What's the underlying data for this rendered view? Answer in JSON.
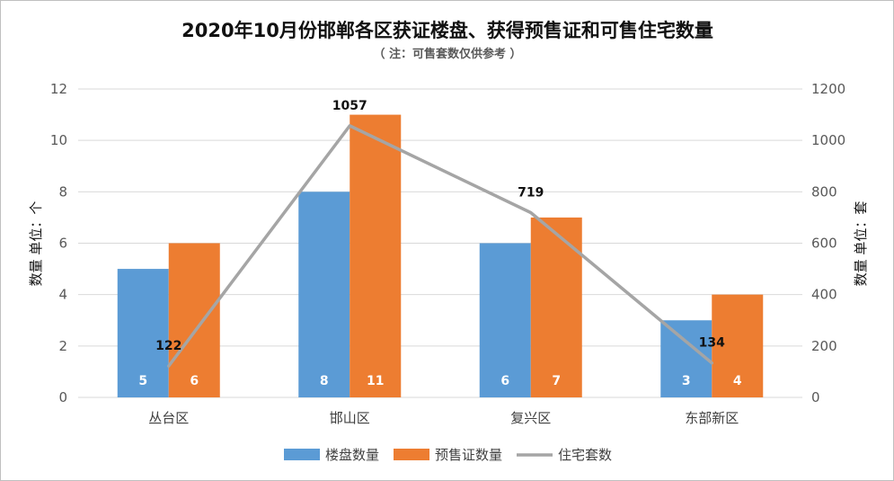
{
  "chart_data": {
    "type": "bar",
    "title": "2020年10月份邯郸各区获证楼盘、获得预售证和可售住宅数量",
    "subtitle": "（ 注：可售套数仅供参考 ）",
    "categories": [
      "丛台区",
      "邯山区",
      "复兴区",
      "东部新区"
    ],
    "y_left": {
      "label": "数量 单位：个",
      "lim": [
        0,
        12
      ],
      "ticks": [
        0,
        2,
        4,
        6,
        8,
        10,
        12
      ]
    },
    "y_right": {
      "label": "数量 单位：套",
      "lim": [
        0,
        1200
      ],
      "ticks": [
        0,
        200,
        400,
        600,
        800,
        1000,
        1200
      ]
    },
    "series": [
      {
        "name": "楼盘数量",
        "kind": "bar",
        "axis": "left",
        "color": "#5b9bd5",
        "values": [
          5,
          8,
          6,
          3
        ]
      },
      {
        "name": "预售证数量",
        "kind": "bar",
        "axis": "left",
        "color": "#ed7d31",
        "values": [
          6,
          11,
          7,
          4
        ]
      },
      {
        "name": "住宅套数",
        "kind": "line",
        "axis": "right",
        "color": "#a5a5a5",
        "values": [
          122,
          1057,
          719,
          134
        ]
      }
    ],
    "grid": true,
    "legend_position": "bottom"
  },
  "colors": {
    "grid": "#d9d9d9",
    "frame": "#bfbfbf"
  }
}
